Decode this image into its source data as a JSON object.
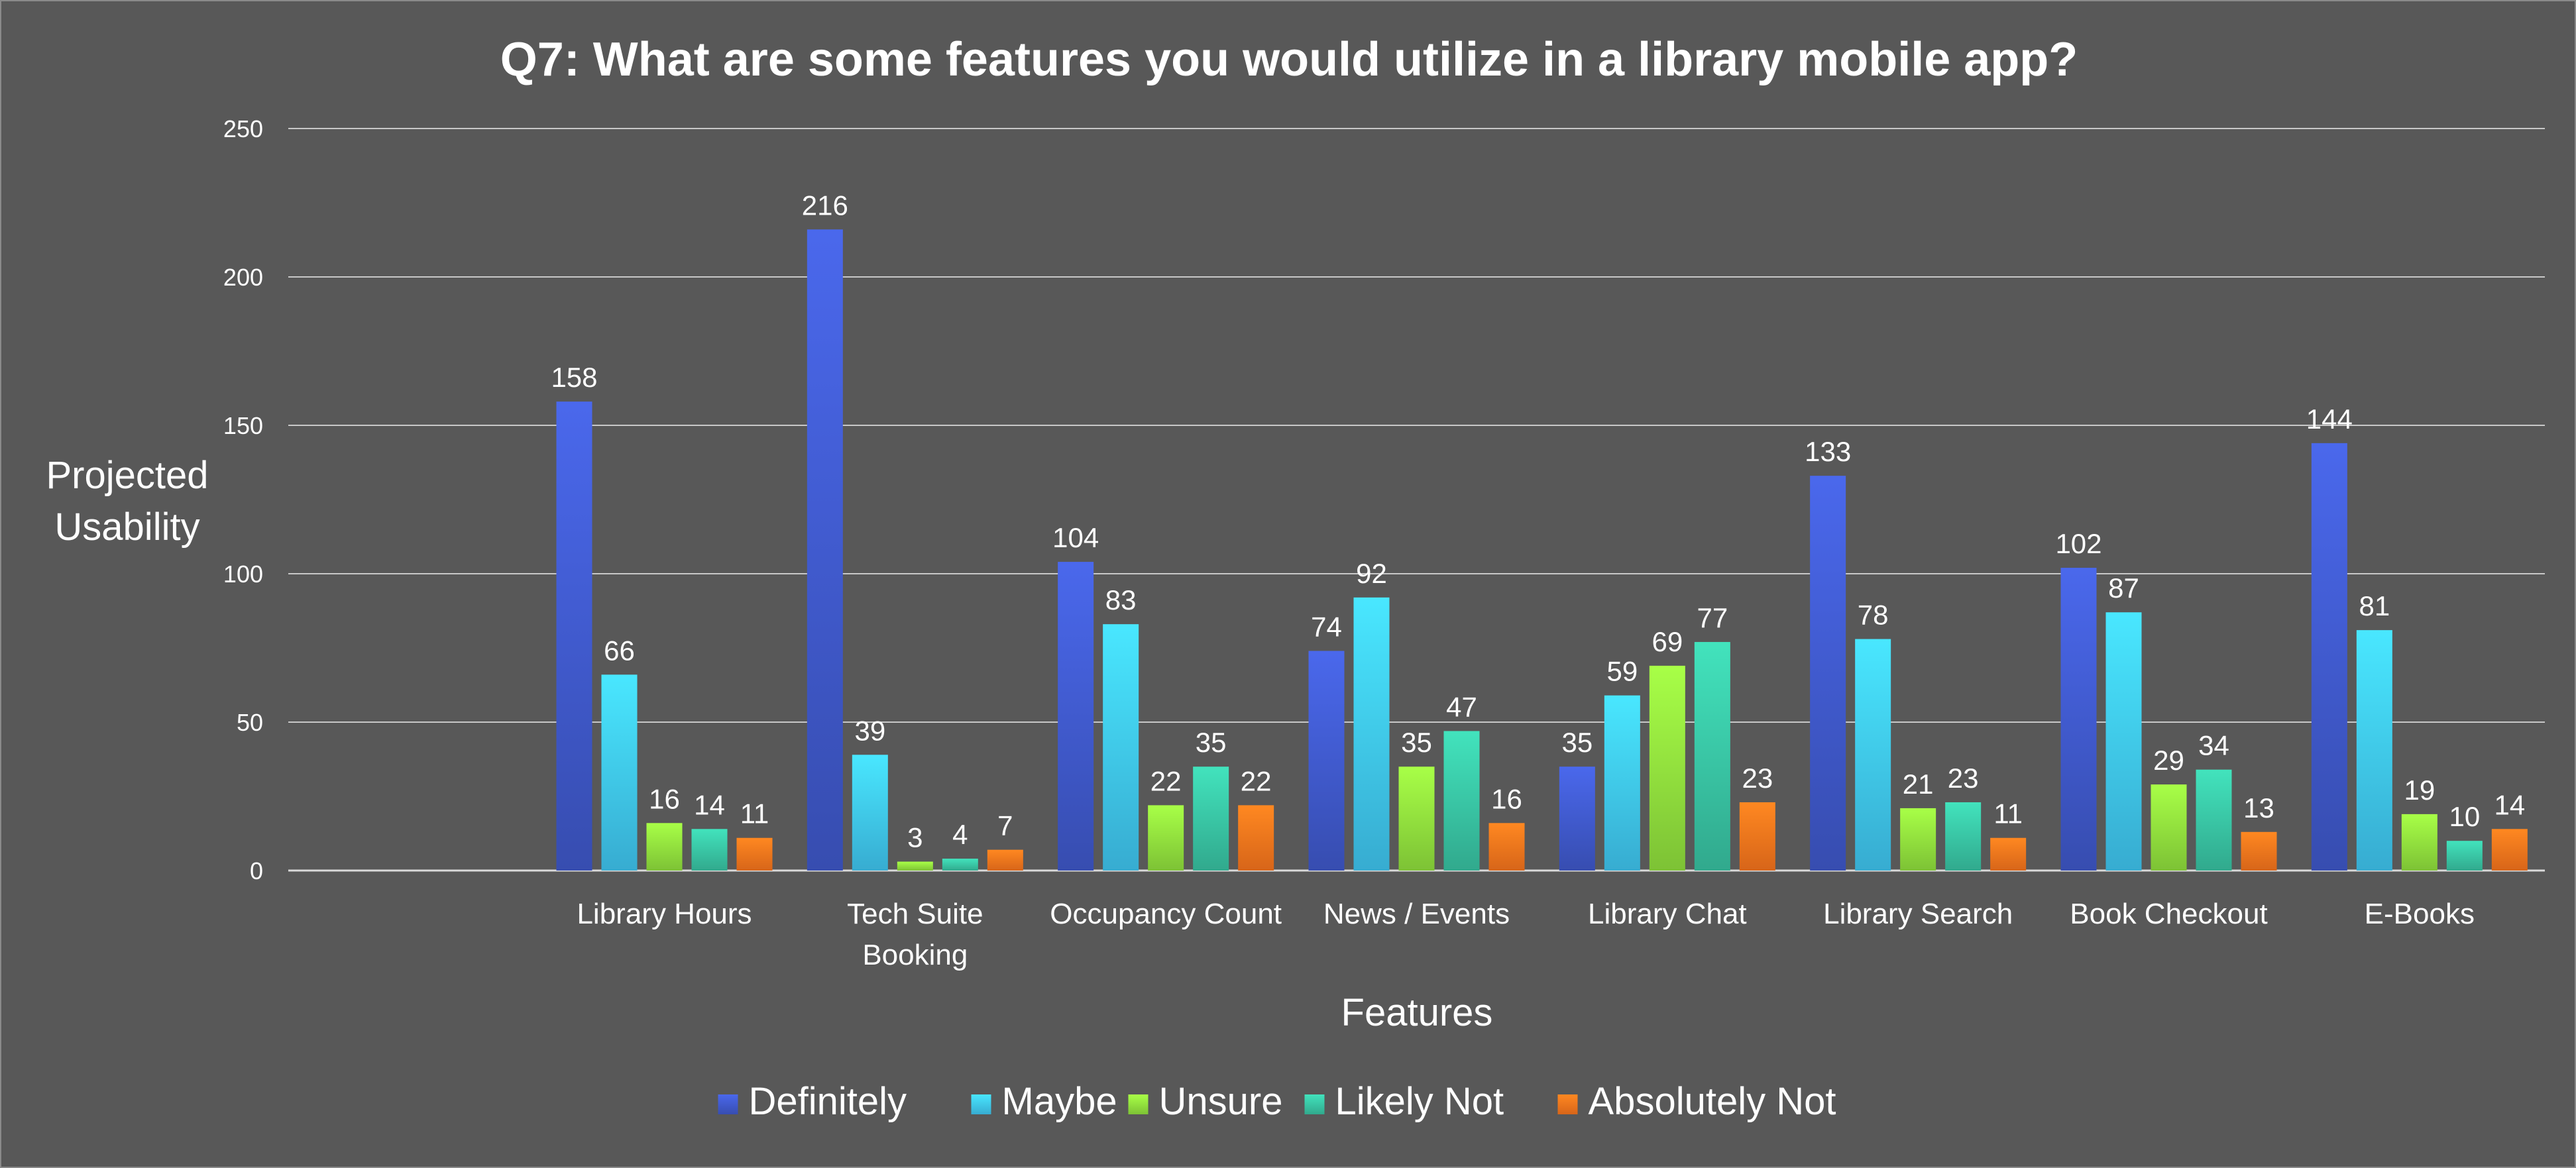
{
  "chart_data": {
    "type": "bar",
    "title": "Q7: What are some features you would utilize in a library mobile app?",
    "xlabel": "Features",
    "ylabel": "Projected Usability",
    "ylim": [
      0,
      250
    ],
    "yticks": [
      "0",
      "50",
      "100",
      "150",
      "200",
      "250"
    ],
    "grid": true,
    "legend_position": "bottom",
    "categories": [
      "",
      "Library Hours",
      "Tech Suite Booking",
      "Occupancy Count",
      "News / Events",
      "Library Chat",
      "Library Search",
      "Book Checkout",
      "E-Books"
    ],
    "series": [
      {
        "name": "Definitely",
        "color": "#3f58c8",
        "values": [
          null,
          158,
          216,
          104,
          74,
          35,
          133,
          102,
          144
        ]
      },
      {
        "name": "Maybe",
        "color": "#3ec4ee",
        "values": [
          null,
          66,
          39,
          83,
          92,
          59,
          78,
          87,
          81
        ]
      },
      {
        "name": "Unsure",
        "color": "#8edc3c",
        "values": [
          null,
          16,
          3,
          22,
          35,
          69,
          21,
          29,
          19
        ]
      },
      {
        "name": "Likely Not",
        "color": "#38c0a0",
        "values": [
          null,
          14,
          4,
          35,
          47,
          77,
          23,
          34,
          10
        ]
      },
      {
        "name": "Absolutely Not",
        "color": "#f4731c",
        "values": [
          null,
          11,
          7,
          22,
          16,
          23,
          11,
          13,
          14
        ]
      }
    ]
  }
}
